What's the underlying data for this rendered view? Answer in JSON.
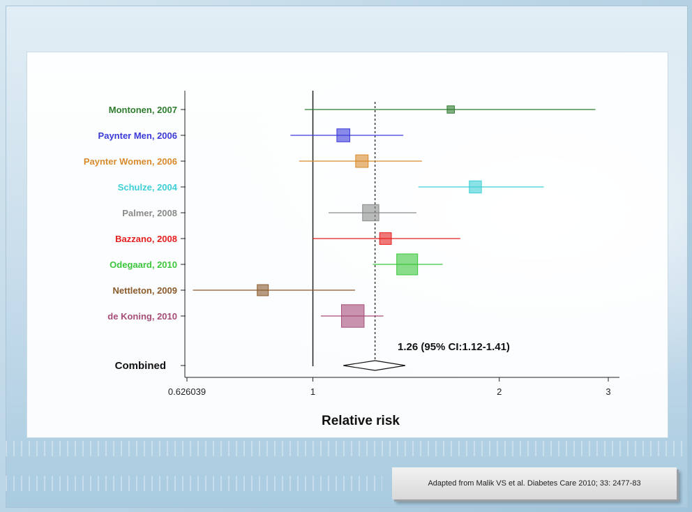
{
  "chart_data": {
    "type": "forest",
    "xlabel": "Relative risk",
    "x_scale": "log",
    "xlim": [
      0.626039,
      3.0
    ],
    "x_ticks": [
      {
        "value": 0.626039,
        "label": "0.626039"
      },
      {
        "value": 1,
        "label": "1"
      },
      {
        "value": 2,
        "label": "2"
      },
      {
        "value": 3,
        "label": "3"
      }
    ],
    "reference_line": 1,
    "pooled_line": 1.26,
    "studies": [
      {
        "name": "Montonen, 2007",
        "rr": 1.67,
        "lo": 0.97,
        "hi": 2.86,
        "weight": 0.15,
        "color": "#2e7d2e"
      },
      {
        "name": "Paynter Men, 2006",
        "rr": 1.12,
        "lo": 0.92,
        "hi": 1.4,
        "weight": 0.42,
        "color": "#3b3bd9"
      },
      {
        "name": "Paynter Women, 2006",
        "rr": 1.2,
        "lo": 0.95,
        "hi": 1.5,
        "weight": 0.4,
        "color": "#d98a2b"
      },
      {
        "name": "Schulze, 2004",
        "rr": 1.83,
        "lo": 1.48,
        "hi": 2.36,
        "weight": 0.38,
        "color": "#3ecfd6"
      },
      {
        "name": "Palmer, 2008",
        "rr": 1.24,
        "lo": 1.06,
        "hi": 1.47,
        "weight": 0.58,
        "color": "#8a8a8a"
      },
      {
        "name": "Bazzano, 2008",
        "rr": 1.31,
        "lo": 1.0,
        "hi": 1.73,
        "weight": 0.36,
        "color": "#e61e1e"
      },
      {
        "name": "Odegaard, 2010",
        "rr": 1.42,
        "lo": 1.25,
        "hi": 1.62,
        "weight": 0.8,
        "color": "#3cc63c"
      },
      {
        "name": "Nettleton, 2009",
        "rr": 0.83,
        "lo": 0.64,
        "hi": 1.17,
        "weight": 0.33,
        "color": "#8b5a2b"
      },
      {
        "name": "de Koning, 2010",
        "rr": 1.16,
        "lo": 1.03,
        "hi": 1.3,
        "weight": 0.88,
        "color": "#a64d79"
      }
    ],
    "combined": {
      "name": "Combined",
      "rr": 1.26,
      "lo": 1.12,
      "hi": 1.41
    },
    "annotation": "1.26 (95% CI:1.12-1.41)"
  },
  "source_note": "Adapted from Malik VS et al. Diabetes Care 2010; 33: 2477-83"
}
